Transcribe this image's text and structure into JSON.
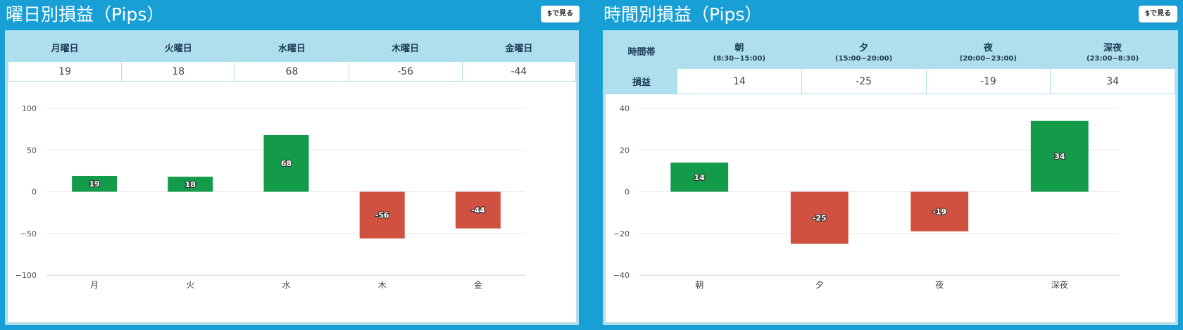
{
  "left_panel": {
    "title": "曜日別損益（Pips）",
    "usd_button": "$で見る",
    "table": {
      "headers": [
        "月曜日",
        "火曜日",
        "水曜日",
        "木曜日",
        "金曜日"
      ],
      "values": [
        "19",
        "18",
        "68",
        "-56",
        "-44"
      ]
    }
  },
  "right_panel": {
    "title": "時間別損益（Pips）",
    "usd_button": "$で見る",
    "table": {
      "row_header": "時間帯",
      "value_row_label": "損益",
      "headers": [
        {
          "name": "朝",
          "range": "(8:30~15:00)"
        },
        {
          "name": "夕",
          "range": "(15:00~20:00)"
        },
        {
          "name": "夜",
          "range": "(20:00~23:00)"
        },
        {
          "name": "深夜",
          "range": "(23:00~8:30)"
        }
      ],
      "values": [
        "14",
        "-25",
        "-19",
        "34"
      ]
    }
  },
  "colors": {
    "positive": "#149b4a",
    "negative": "#d05140",
    "background": "#189fd6",
    "table_header": "#afdfec"
  },
  "chart_data": [
    {
      "type": "bar",
      "categories": [
        "月",
        "火",
        "水",
        "木",
        "金"
      ],
      "values": [
        19,
        18,
        68,
        -56,
        -44
      ],
      "data_labels": [
        "19",
        "18",
        "68",
        "-56",
        "-44"
      ],
      "yticks": [
        100,
        50,
        0,
        -50,
        -100
      ],
      "ytick_labels": [
        "100",
        "50",
        "0",
        "−50",
        "−100"
      ],
      "ylim": [
        -100,
        100
      ],
      "grid": true
    },
    {
      "type": "bar",
      "categories": [
        "朝",
        "夕",
        "夜",
        "深夜"
      ],
      "values": [
        14,
        -25,
        -19,
        34
      ],
      "data_labels": [
        "14",
        "-25",
        "-19",
        "34"
      ],
      "yticks": [
        40,
        20,
        0,
        -20,
        -40
      ],
      "ytick_labels": [
        "40",
        "20",
        "0",
        "−20",
        "−40"
      ],
      "ylim": [
        -40,
        40
      ],
      "grid": true
    }
  ]
}
